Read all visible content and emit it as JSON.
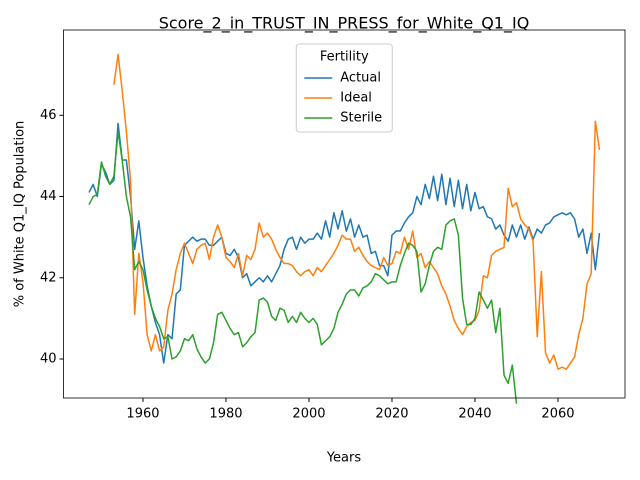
{
  "chart_data": {
    "type": "line",
    "title": "Score_2_in_TRUST_IN_PRESS_for_White_Q1_IQ",
    "xlabel": "Years",
    "ylabel": "% of White Q1_IQ Population",
    "legend_title": "Fertility",
    "legend": "upper center",
    "grid": false,
    "xlim": [
      1940.85,
      2076.15
    ],
    "ylim": [
      39.04,
      48.1
    ],
    "xticks": [
      1960,
      1980,
      2000,
      2020,
      2040,
      2060
    ],
    "yticks": [
      40,
      42,
      44,
      46
    ],
    "x": [
      1947,
      1948,
      1949,
      1950,
      1951,
      1952,
      1953,
      1954,
      1955,
      1956,
      1957,
      1958,
      1959,
      1960,
      1961,
      1962,
      1963,
      1964,
      1965,
      1966,
      1967,
      1968,
      1969,
      1970,
      1971,
      1972,
      1973,
      1974,
      1975,
      1976,
      1977,
      1978,
      1979,
      1980,
      1981,
      1982,
      1983,
      1984,
      1985,
      1986,
      1987,
      1988,
      1989,
      1990,
      1991,
      1992,
      1993,
      1994,
      1995,
      1996,
      1997,
      1998,
      1999,
      2000,
      2001,
      2002,
      2003,
      2004,
      2005,
      2006,
      2007,
      2008,
      2009,
      2010,
      2011,
      2012,
      2013,
      2014,
      2015,
      2016,
      2017,
      2018,
      2019,
      2020,
      2021,
      2022,
      2023,
      2024,
      2025,
      2026,
      2027,
      2028,
      2029,
      2030,
      2031,
      2032,
      2033,
      2034,
      2035,
      2036,
      2037,
      2038,
      2039,
      2040,
      2041,
      2042,
      2043,
      2044,
      2045,
      2046,
      2047,
      2048,
      2049,
      2050,
      2051,
      2052,
      2053,
      2054,
      2055,
      2056,
      2057,
      2058,
      2059,
      2060,
      2061,
      2062,
      2063,
      2064,
      2065,
      2066,
      2067,
      2068,
      2069,
      2070
    ],
    "series": [
      {
        "name": "Actual",
        "color": "#1f77b4",
        "values": [
          44.1,
          44.3,
          44.0,
          44.8,
          44.6,
          44.3,
          44.4,
          45.8,
          44.9,
          44.9,
          44.0,
          42.7,
          43.4,
          42.5,
          41.8,
          41.3,
          40.9,
          40.6,
          39.9,
          40.6,
          40.5,
          41.6,
          41.7,
          42.8,
          42.9,
          43.0,
          42.9,
          42.95,
          42.95,
          42.8,
          42.8,
          42.9,
          43.0,
          42.6,
          42.55,
          42.7,
          42.5,
          42.0,
          42.1,
          41.8,
          41.9,
          42.0,
          41.9,
          42.05,
          41.9,
          42.1,
          42.3,
          42.7,
          42.95,
          43.0,
          42.7,
          43.0,
          42.85,
          42.95,
          42.95,
          43.1,
          42.95,
          43.4,
          43.0,
          43.6,
          43.2,
          43.65,
          43.15,
          43.45,
          43.0,
          43.3,
          43.0,
          43.05,
          42.6,
          42.65,
          42.3,
          42.3,
          42.05,
          43.05,
          43.15,
          43.15,
          43.35,
          43.5,
          43.6,
          44.0,
          43.8,
          44.3,
          43.95,
          44.5,
          43.9,
          44.55,
          43.8,
          44.45,
          43.75,
          44.4,
          43.7,
          44.3,
          43.65,
          44.1,
          43.7,
          43.75,
          43.5,
          43.45,
          43.2,
          43.3,
          43.05,
          42.9,
          43.3,
          43.0,
          43.3,
          42.95,
          43.25,
          42.95,
          43.2,
          43.1,
          43.3,
          43.35,
          43.5,
          43.55,
          43.6,
          43.55,
          43.6,
          43.45,
          43.0,
          43.2,
          42.6,
          43.1,
          42.2,
          43.1
        ]
      },
      {
        "name": "Ideal",
        "color": "#ff7f0e",
        "values": [
          null,
          null,
          null,
          null,
          null,
          null,
          46.75,
          47.5,
          46.6,
          45.6,
          44.4,
          41.1,
          42.6,
          41.9,
          40.6,
          40.2,
          40.6,
          40.2,
          40.3,
          41.2,
          41.6,
          42.2,
          42.6,
          42.85,
          42.6,
          42.35,
          42.7,
          42.8,
          42.85,
          42.45,
          43.0,
          43.3,
          43.0,
          42.5,
          42.4,
          42.25,
          42.6,
          42.05,
          42.55,
          42.45,
          42.7,
          43.35,
          43.0,
          43.1,
          42.95,
          42.7,
          42.5,
          42.35,
          42.35,
          42.3,
          42.15,
          42.05,
          42.15,
          42.2,
          42.05,
          42.25,
          42.15,
          42.3,
          42.45,
          42.6,
          42.8,
          43.05,
          42.95,
          42.95,
          42.65,
          42.75,
          42.55,
          42.4,
          42.3,
          42.25,
          42.2,
          42.5,
          42.3,
          42.35,
          42.65,
          42.6,
          43.0,
          42.7,
          43.15,
          42.5,
          42.6,
          42.25,
          42.4,
          42.25,
          42.1,
          41.8,
          41.6,
          41.3,
          40.95,
          40.75,
          40.6,
          40.8,
          40.9,
          40.95,
          41.2,
          42.05,
          42.0,
          42.55,
          42.65,
          42.7,
          42.75,
          44.2,
          43.75,
          43.85,
          43.45,
          43.3,
          43.2,
          42.9,
          40.55,
          42.15,
          40.15,
          39.9,
          40.1,
          39.75,
          39.8,
          39.75,
          39.9,
          40.05,
          40.6,
          41.0,
          41.85,
          42.1,
          45.85,
          45.15
        ]
      },
      {
        "name": "Sterile",
        "color": "#2ca02c",
        "values": [
          43.8,
          44.0,
          44.05,
          44.85,
          44.5,
          44.3,
          44.5,
          45.6,
          44.9,
          44.0,
          43.5,
          42.2,
          42.4,
          42.2,
          41.7,
          41.3,
          41.0,
          40.8,
          40.5,
          40.55,
          40.0,
          40.05,
          40.2,
          40.5,
          40.45,
          40.6,
          40.25,
          40.05,
          39.9,
          40.0,
          40.4,
          41.1,
          41.15,
          40.95,
          40.75,
          40.6,
          40.65,
          40.3,
          40.4,
          40.55,
          40.65,
          41.45,
          41.5,
          41.4,
          41.05,
          40.95,
          41.25,
          41.2,
          40.9,
          41.05,
          40.9,
          41.15,
          41.0,
          40.9,
          41.0,
          40.85,
          40.35,
          40.45,
          40.55,
          40.75,
          41.15,
          41.35,
          41.6,
          41.7,
          41.7,
          41.55,
          41.75,
          41.8,
          41.9,
          42.1,
          42.05,
          41.95,
          41.85,
          41.9,
          41.9,
          42.3,
          42.6,
          42.85,
          42.8,
          42.65,
          41.65,
          41.85,
          42.3,
          42.65,
          42.75,
          42.7,
          43.3,
          43.4,
          43.45,
          43.05,
          41.5,
          40.85,
          40.85,
          41.0,
          41.65,
          41.45,
          41.25,
          41.45,
          40.65,
          41.25,
          39.6,
          39.4,
          39.85,
          38.9,
          null,
          null,
          null,
          null,
          null,
          null,
          null,
          null,
          null,
          null,
          null,
          null,
          null,
          null,
          null,
          null,
          null,
          null,
          null,
          null
        ]
      }
    ]
  }
}
